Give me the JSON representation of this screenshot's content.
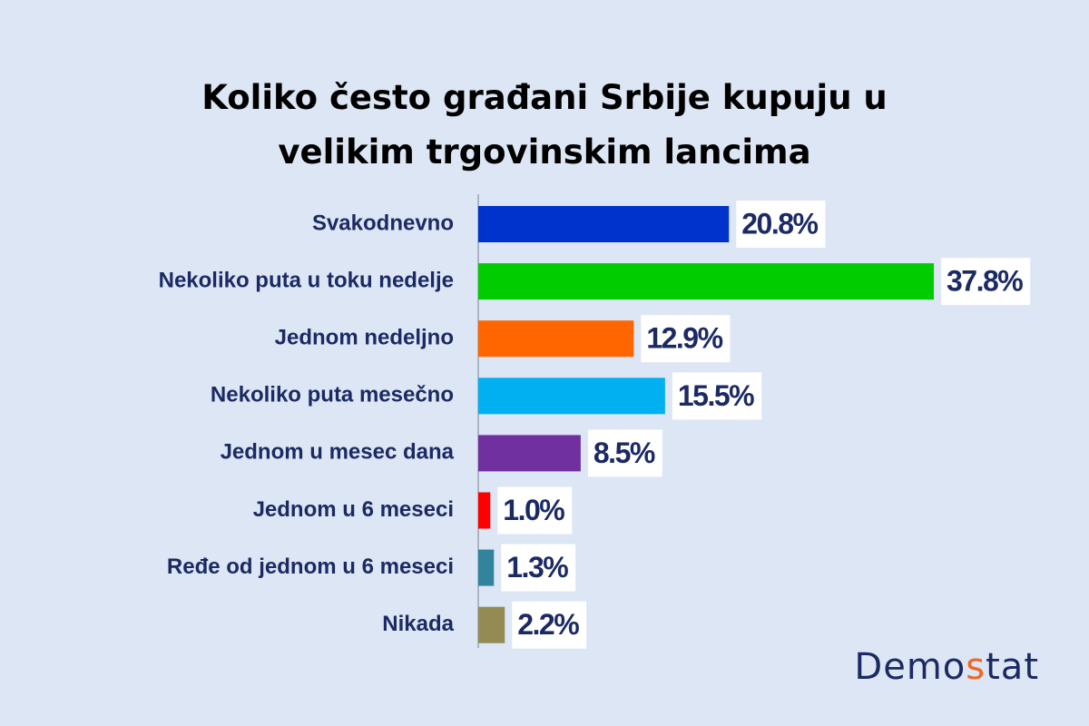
{
  "chart_data": {
    "type": "barh",
    "title": "Koliko često građani Srbije kupuju u velikim trgovinskim lancima",
    "categories": [
      "Svakodnevno",
      "Nekoliko puta u toku nedelje",
      "Jednom nedeljno",
      "Nekoliko puta mesečno",
      "Jednom u mesec dana",
      "Jednom u 6 meseci",
      "Ređe od jednom u 6 meseci",
      "Nikada"
    ],
    "values": [
      20.8,
      37.8,
      12.9,
      15.5,
      8.5,
      1.0,
      1.3,
      2.2
    ],
    "value_labels": [
      "20.8%",
      "37.8%",
      "12.9%",
      "15.5%",
      "8.5%",
      "1.0%",
      "1.3%",
      "2.2%"
    ],
    "colors": [
      "#0033cc",
      "#00cc00",
      "#ff6600",
      "#00b0f0",
      "#7030a0",
      "#ff0000",
      "#31849b",
      "#948a54"
    ],
    "source": "Demostat"
  }
}
